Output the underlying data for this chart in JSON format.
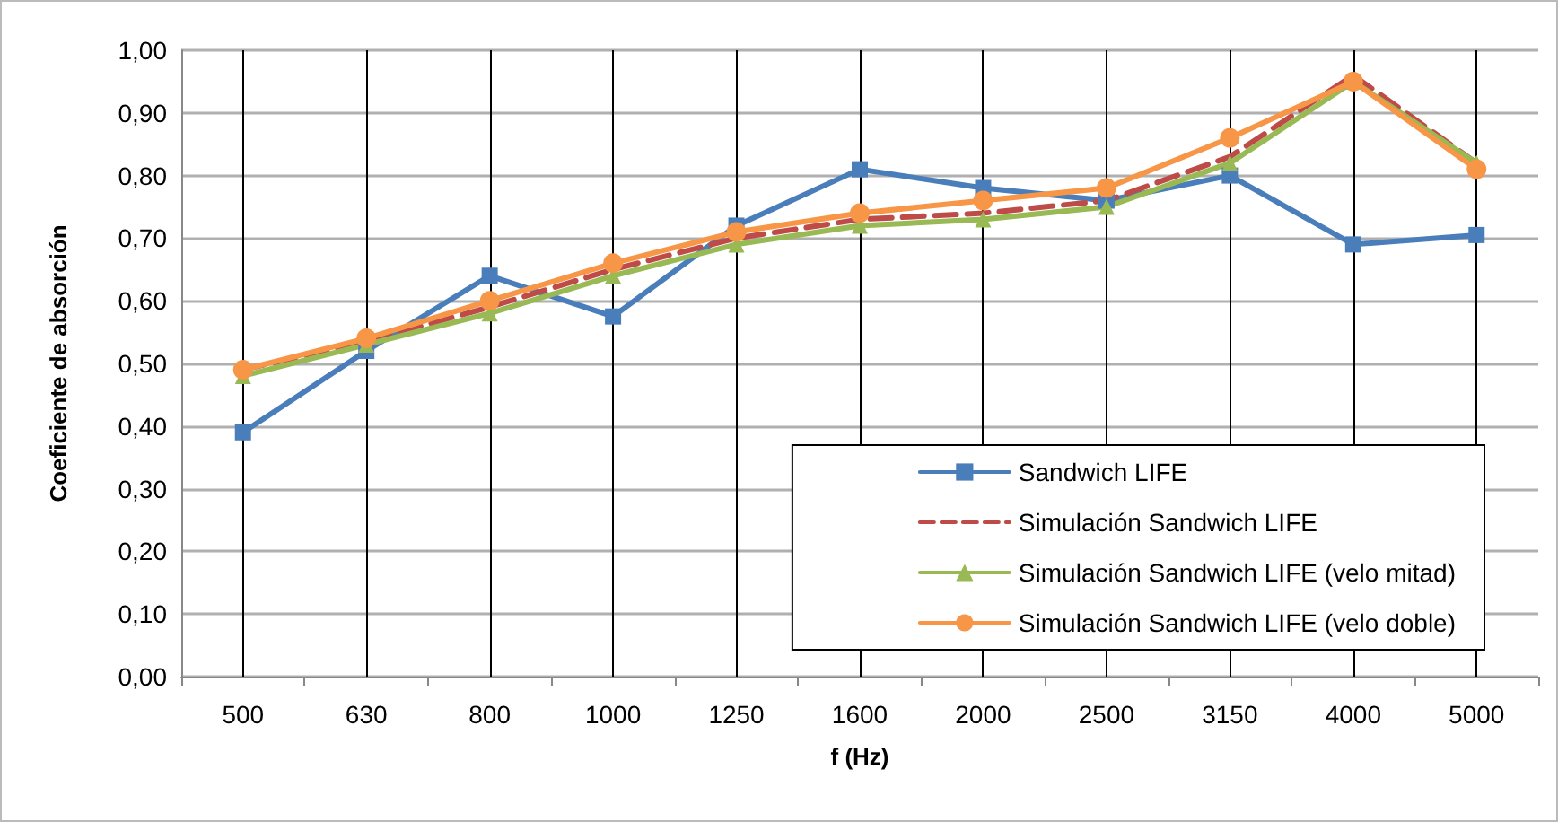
{
  "chart_data": {
    "type": "line",
    "xlabel": "f (Hz)",
    "ylabel": "Coeficiente de absorción",
    "categories": [
      "500",
      "630",
      "800",
      "1000",
      "1250",
      "1600",
      "2000",
      "2500",
      "3150",
      "4000",
      "5000"
    ],
    "series": [
      {
        "name": "Sandwich LIFE",
        "color": "#4a7ebb",
        "marker": "square",
        "values": [
          0.39,
          0.52,
          0.64,
          0.575,
          0.72,
          0.81,
          0.78,
          0.76,
          0.8,
          0.69,
          0.705
        ]
      },
      {
        "name": "Simulación Sandwich LIFE",
        "color": "#be4b48",
        "marker": "none",
        "line_style": "dashed",
        "values": [
          0.49,
          0.535,
          0.59,
          0.65,
          0.7,
          0.73,
          0.74,
          0.76,
          0.83,
          0.96,
          0.82
        ]
      },
      {
        "name": "Simulación Sandwich LIFE (velo mitad)",
        "color": "#98b954",
        "marker": "triangle",
        "values": [
          0.48,
          0.53,
          0.58,
          0.64,
          0.69,
          0.72,
          0.73,
          0.75,
          0.82,
          0.95,
          0.82
        ]
      },
      {
        "name": "Simulación Sandwich LIFE (velo doble)",
        "color": "#f79646",
        "marker": "circle",
        "values": [
          0.49,
          0.54,
          0.6,
          0.66,
          0.71,
          0.74,
          0.76,
          0.78,
          0.86,
          0.95,
          0.81
        ]
      }
    ],
    "ylim": [
      0,
      1
    ],
    "yticks": [
      {
        "value": 0,
        "label": "0,00"
      },
      {
        "value": 0.1,
        "label": "0,10"
      },
      {
        "value": 0.2,
        "label": "0,20"
      },
      {
        "value": 0.3,
        "label": "0,30"
      },
      {
        "value": 0.4,
        "label": "0,40"
      },
      {
        "value": 0.5,
        "label": "0,50"
      },
      {
        "value": 0.6,
        "label": "0,60"
      },
      {
        "value": 0.7,
        "label": "0,70"
      },
      {
        "value": 0.8,
        "label": "0,80"
      },
      {
        "value": 0.9,
        "label": "0,90"
      },
      {
        "value": 1,
        "label": "1,00"
      }
    ],
    "grid": true,
    "legend": "bottom right",
    "line_style": "solid"
  }
}
